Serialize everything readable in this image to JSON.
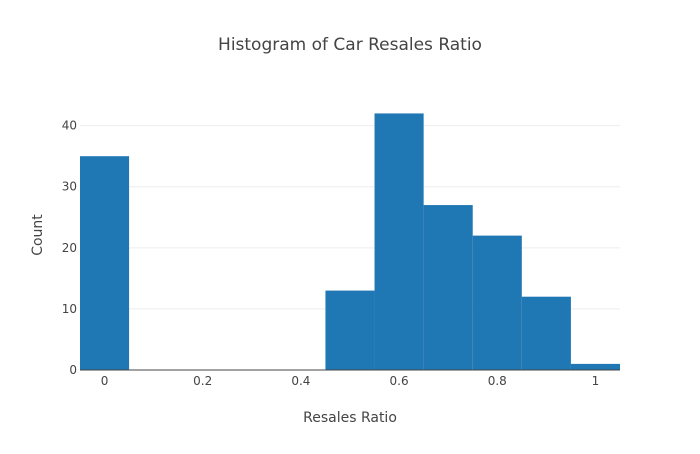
{
  "chart_data": {
    "type": "bar",
    "title": "Histogram of Car Resales Ratio",
    "xlabel": "Resales Ratio",
    "ylabel": "Count",
    "bin_width": 0.1,
    "bins": [
      {
        "start": -0.05,
        "end": 0.05,
        "count": 35
      },
      {
        "start": 0.05,
        "end": 0.15,
        "count": 0
      },
      {
        "start": 0.15,
        "end": 0.25,
        "count": 0
      },
      {
        "start": 0.25,
        "end": 0.35,
        "count": 0
      },
      {
        "start": 0.35,
        "end": 0.45,
        "count": 0
      },
      {
        "start": 0.45,
        "end": 0.55,
        "count": 13
      },
      {
        "start": 0.55,
        "end": 0.65,
        "count": 42
      },
      {
        "start": 0.65,
        "end": 0.75,
        "count": 27
      },
      {
        "start": 0.75,
        "end": 0.85,
        "count": 22
      },
      {
        "start": 0.85,
        "end": 0.95,
        "count": 12
      },
      {
        "start": 0.95,
        "end": 1.05,
        "count": 1
      }
    ],
    "x_ticks": [
      "0",
      "0.2",
      "0.4",
      "0.6",
      "0.8",
      "1"
    ],
    "x_tick_values": [
      0,
      0.2,
      0.4,
      0.6,
      0.8,
      1
    ],
    "y_ticks": [
      "0",
      "10",
      "20",
      "30",
      "40"
    ],
    "y_tick_values": [
      0,
      10,
      20,
      30,
      40
    ],
    "xlim": [
      -0.05,
      1.05
    ],
    "ylim": [
      0,
      44.2
    ],
    "grid": true,
    "bar_color": "#1f77b4",
    "grid_color": "#eeeeee",
    "text_color": "#444444"
  }
}
